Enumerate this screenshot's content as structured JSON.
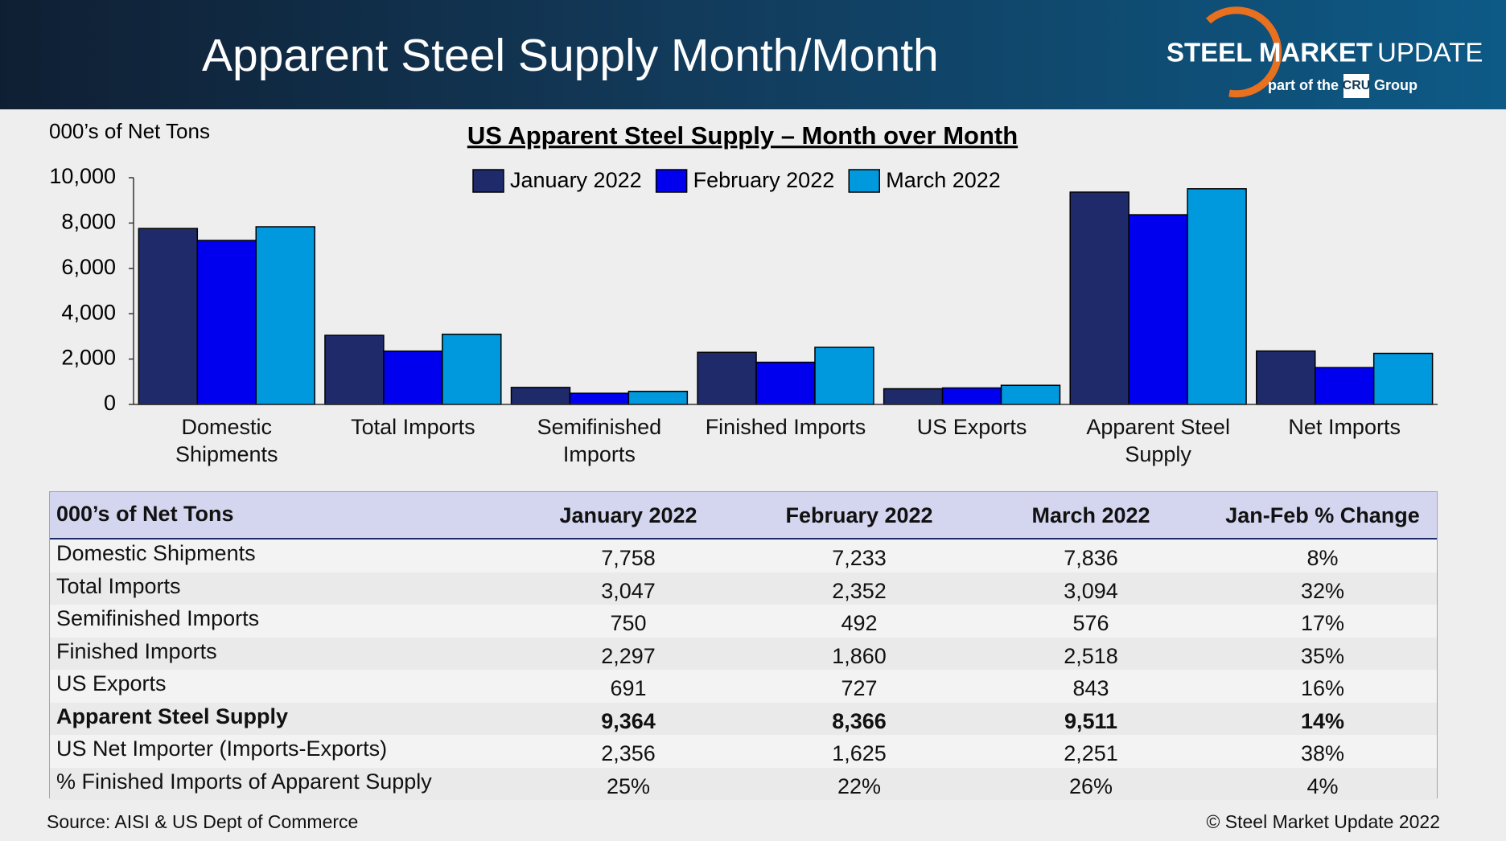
{
  "header": {
    "title": "Apparent Steel Supply Month/Month",
    "logo_main": "STEEL MARKET",
    "logo_tail": "UPDATE",
    "logo_sub": "part of the",
    "logo_cru": "CRU",
    "logo_group": "Group"
  },
  "chart_data": {
    "type": "bar",
    "title": "US Apparent Steel Supply – Month over Month",
    "y_label": "000’s of Net Tons",
    "categories": [
      "Domestic Shipments",
      "Total Imports",
      "Semifinished Imports",
      "Finished Imports",
      "US Exports",
      "Apparent Steel Supply",
      "Net Imports"
    ],
    "series": [
      {
        "name": "January 2022",
        "color": "#1f2a6b",
        "values": [
          7758,
          3047,
          750,
          2297,
          691,
          9364,
          2356
        ]
      },
      {
        "name": "February 2022",
        "color": "#0000ee",
        "values": [
          7233,
          2352,
          492,
          1860,
          727,
          8366,
          1625
        ]
      },
      {
        "name": "March 2022",
        "color": "#0099dd",
        "values": [
          7836,
          3094,
          576,
          2518,
          843,
          9511,
          2251
        ]
      }
    ],
    "ylim": [
      0,
      10000
    ],
    "yticks": [
      0,
      {
        "value": 2000,
        "label": "2,000"
      },
      {
        "value": 4000,
        "label": "4,000"
      },
      {
        "value": 6000,
        "label": "6,000"
      },
      {
        "value": 8000,
        "label": "8,000"
      },
      {
        "value": 10000,
        "label": "10,000"
      }
    ],
    "legend": "top"
  },
  "table": {
    "header": [
      "000’s of Net Tons",
      "January 2022",
      "February 2022",
      "March 2022",
      "Jan-Feb % Change"
    ],
    "rows": [
      [
        "Domestic Shipments",
        "7,758",
        "7,233",
        "7,836",
        "8%"
      ],
      [
        "Total Imports",
        "3,047",
        "2,352",
        "3,094",
        "32%"
      ],
      [
        "Semifinished Imports",
        "750",
        "492",
        "576",
        "17%"
      ],
      [
        "Finished Imports",
        "2,297",
        "1,860",
        "2,518",
        "35%"
      ],
      [
        "US Exports",
        "691",
        "727",
        "843",
        "16%"
      ],
      [
        "Apparent Steel Supply",
        "9,364",
        "8,366",
        "9,511",
        "14%"
      ],
      [
        "US Net Importer (Imports-Exports)",
        "2,356",
        "1,625",
        "2,251",
        "38%"
      ],
      [
        "% Finished Imports of Apparent Supply",
        "25%",
        "22%",
        "26%",
        "4%"
      ]
    ],
    "bold_rows": [
      5
    ]
  },
  "footer": {
    "source": "Source:  AISI & US Dept of Commerce",
    "copyright": "©    Steel Market Update 2022"
  }
}
